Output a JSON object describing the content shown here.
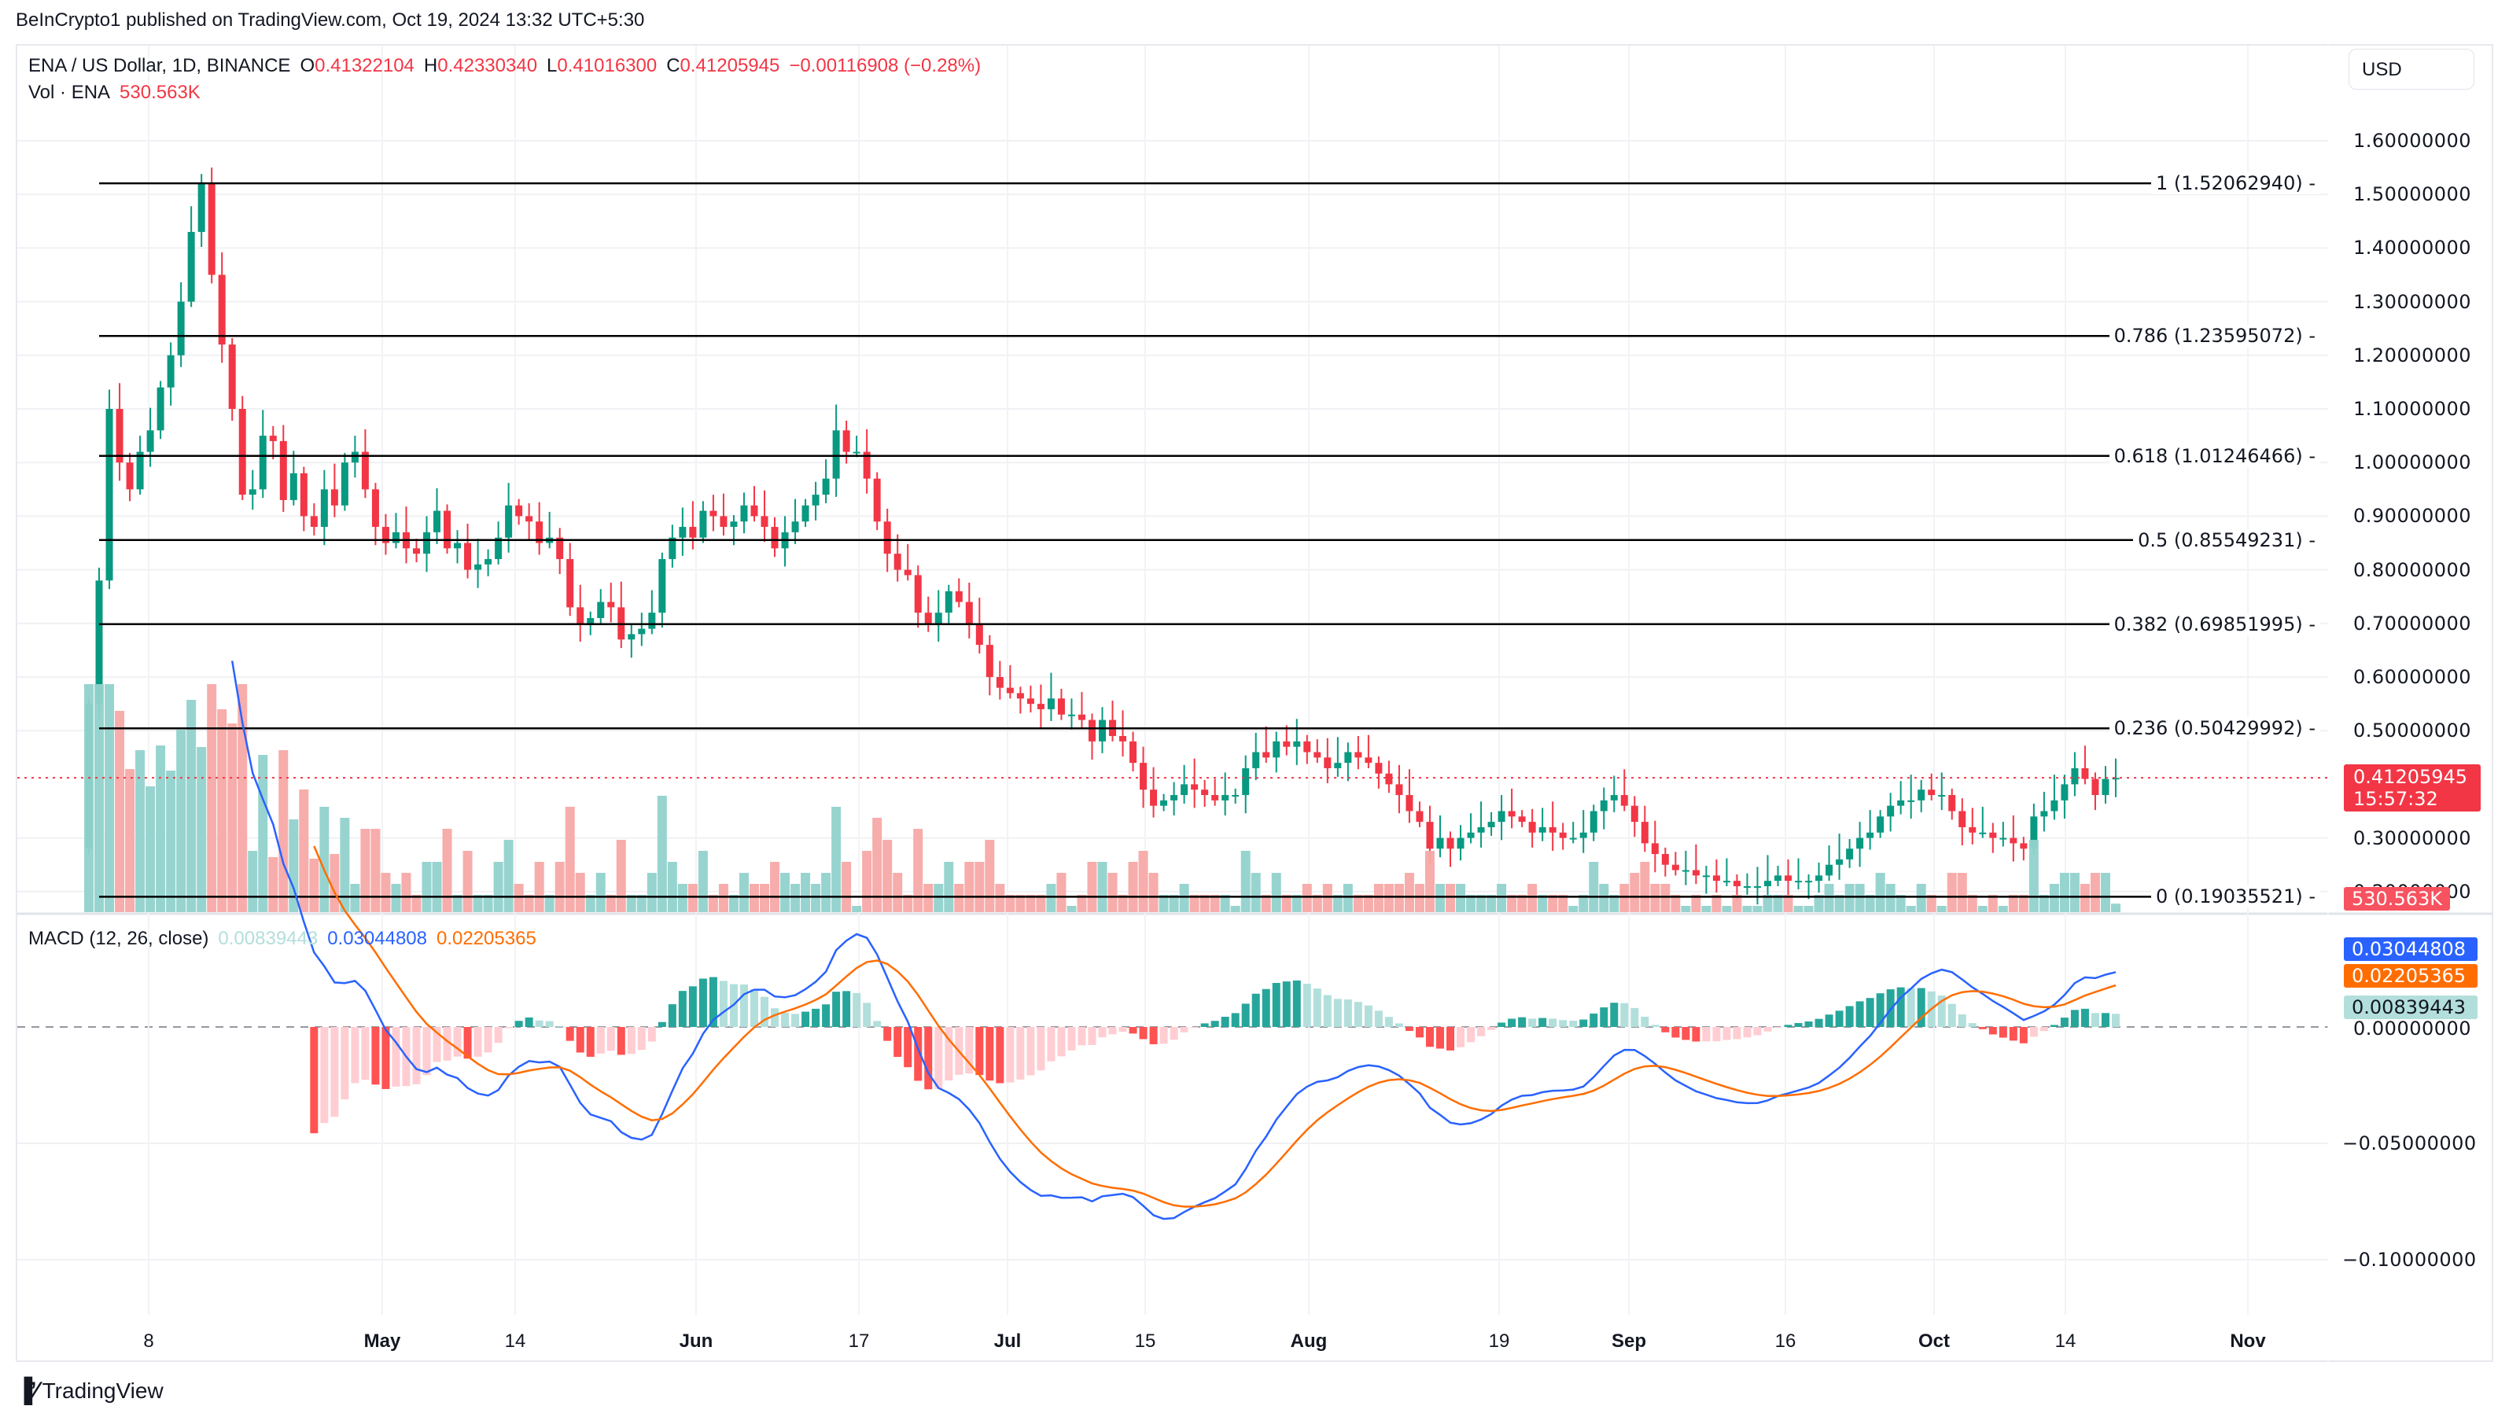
{
  "publisher": "BeInCrypto1 published on TradingView.com, Oct 19, 2024 13:32 UTC+5:30",
  "symbol": {
    "title": "ENA / US Dollar, 1D, BINANCE",
    "o_label": "O",
    "o": "0.41322104",
    "h_label": "H",
    "h": "0.42330340",
    "l_label": "L",
    "l": "0.41016300",
    "c_label": "C",
    "c": "0.41205945",
    "change": "−0.00116908 (−0.28%)"
  },
  "volume": {
    "label": "Vol · ENA",
    "value": "530.563K"
  },
  "currency_button": "USD",
  "price_axis": [
    "1.60000000",
    "1.50000000",
    "1.40000000",
    "1.30000000",
    "1.20000000",
    "1.10000000",
    "1.00000000",
    "0.90000000",
    "0.80000000",
    "0.70000000",
    "0.60000000",
    "0.50000000",
    "0.30000000",
    "0.20000000"
  ],
  "last_price_badge": {
    "price": "0.41205945",
    "countdown": "15:57:32"
  },
  "volume_badge": "530.563K",
  "fib_levels": [
    {
      "label": "1 (1.52062940)",
      "price": 1.5206294
    },
    {
      "label": "0.786 (1.23595072)",
      "price": 1.23595072
    },
    {
      "label": "0.618 (1.01246466)",
      "price": 1.01246466
    },
    {
      "label": "0.5 (0.85549231)",
      "price": 0.85549231
    },
    {
      "label": "0.382 (0.69851995)",
      "price": 0.69851995
    },
    {
      "label": "0.236 (0.50429992)",
      "price": 0.50429992
    },
    {
      "label": "0 (0.19035521)",
      "price": 0.19035521
    }
  ],
  "macd": {
    "title": "MACD (12, 26, close)",
    "histogram": "0.00839443",
    "macd": "0.03044808",
    "signal": "0.02205365",
    "axis": [
      "0.00000000",
      "−0.05000000",
      "−0.10000000"
    ]
  },
  "time_axis": [
    {
      "label": "8",
      "bold": false
    },
    {
      "label": "May",
      "bold": true
    },
    {
      "label": "14",
      "bold": false
    },
    {
      "label": "Jun",
      "bold": true
    },
    {
      "label": "17",
      "bold": false
    },
    {
      "label": "Jul",
      "bold": true
    },
    {
      "label": "15",
      "bold": false
    },
    {
      "label": "Aug",
      "bold": true
    },
    {
      "label": "19",
      "bold": false
    },
    {
      "label": "Sep",
      "bold": true
    },
    {
      "label": "16",
      "bold": false
    },
    {
      "label": "Oct",
      "bold": true
    },
    {
      "label": "14",
      "bold": false
    },
    {
      "label": "Nov",
      "bold": true
    }
  ],
  "brand": "TradingView",
  "colors": {
    "up": "#089981",
    "down": "#f23645",
    "vol_up": "#92d2cc",
    "vol_down": "#f7a9a7",
    "macd": "#2962ff",
    "signal": "#ff6d00",
    "hist_up_strong": "#26a69a",
    "hist_up_weak": "#b2dfdb",
    "hist_down_strong": "#ff5252",
    "hist_down_weak": "#ffcdd2"
  },
  "chart_data": {
    "type": "candlestick",
    "title": "ENA / US Dollar, 1D, BINANCE",
    "xlabel": "",
    "ylabel": "USD",
    "ylim": [
      0.19,
      1.65
    ],
    "x_ticks": [
      "8",
      "May",
      "14",
      "Jun",
      "17",
      "Jul",
      "15",
      "Aug",
      "19",
      "Sep",
      "16",
      "Oct",
      "14",
      "Nov"
    ],
    "closes_approx": [
      0.55,
      0.78,
      1.1,
      1.0,
      0.95,
      1.02,
      1.06,
      1.14,
      1.2,
      1.3,
      1.43,
      1.52,
      1.35,
      1.22,
      1.1,
      0.94,
      0.95,
      1.05,
      1.04,
      0.93,
      0.98,
      0.9,
      0.88,
      0.95,
      0.92,
      1.0,
      1.02,
      0.95,
      0.88,
      0.85,
      0.87,
      0.84,
      0.83,
      0.87,
      0.91,
      0.84,
      0.85,
      0.8,
      0.81,
      0.82,
      0.86,
      0.92,
      0.9,
      0.89,
      0.85,
      0.86,
      0.82,
      0.73,
      0.7,
      0.71,
      0.74,
      0.73,
      0.67,
      0.68,
      0.69,
      0.72,
      0.82,
      0.86,
      0.88,
      0.86,
      0.91,
      0.9,
      0.88,
      0.89,
      0.92,
      0.9,
      0.88,
      0.84,
      0.87,
      0.89,
      0.92,
      0.94,
      0.97,
      1.06,
      1.02,
      1.02,
      0.97,
      0.89,
      0.83,
      0.8,
      0.79,
      0.72,
      0.7,
      0.72,
      0.76,
      0.74,
      0.7,
      0.66,
      0.6,
      0.58,
      0.57,
      0.56,
      0.55,
      0.54,
      0.56,
      0.53,
      0.53,
      0.52,
      0.48,
      0.52,
      0.49,
      0.48,
      0.44,
      0.39,
      0.36,
      0.37,
      0.38,
      0.4,
      0.39,
      0.38,
      0.37,
      0.38,
      0.38,
      0.43,
      0.46,
      0.45,
      0.48,
      0.47,
      0.48,
      0.46,
      0.45,
      0.43,
      0.44,
      0.46,
      0.45,
      0.44,
      0.42,
      0.4,
      0.38,
      0.35,
      0.33,
      0.28,
      0.3,
      0.28,
      0.3,
      0.31,
      0.32,
      0.33,
      0.35,
      0.34,
      0.33,
      0.31,
      0.32,
      0.31,
      0.3,
      0.3,
      0.31,
      0.35,
      0.37,
      0.38,
      0.36,
      0.33,
      0.29,
      0.27,
      0.25,
      0.24,
      0.24,
      0.23,
      0.23,
      0.22,
      0.22,
      0.21,
      0.21,
      0.21,
      0.22,
      0.23,
      0.22,
      0.22,
      0.22,
      0.23,
      0.25,
      0.26,
      0.28,
      0.3,
      0.31,
      0.34,
      0.36,
      0.37,
      0.37,
      0.39,
      0.38,
      0.38,
      0.35,
      0.32,
      0.31,
      0.31,
      0.3,
      0.3,
      0.29,
      0.28,
      0.34,
      0.35,
      0.37,
      0.4,
      0.43,
      0.41,
      0.38,
      0.41,
      0.412
    ],
    "fib_retracement": {
      "1": 1.5206294,
      "0.786": 1.23595072,
      "0.618": 1.01246466,
      "0.5": 0.85549231,
      "0.382": 0.69851995,
      "0.236": 0.50429992,
      "0": 0.19035521
    },
    "last_close": 0.41205945,
    "last_volume": "530.563K",
    "macd": {
      "params": [
        12,
        26
      ],
      "last_histogram": 0.00839443,
      "last_macd": 0.03044808,
      "last_signal": 0.02205365,
      "ylim": [
        -0.115,
        0.03
      ]
    }
  }
}
